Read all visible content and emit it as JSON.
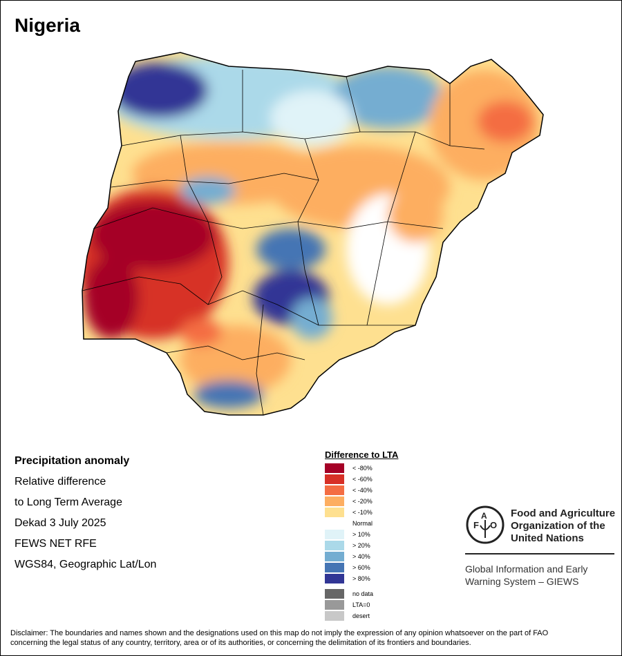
{
  "title": "Nigeria",
  "info": {
    "heading": "Precipitation anomaly",
    "lines": [
      "Relative difference",
      "to Long Term Average",
      "Dekad 3 July 2025",
      "FEWS NET RFE",
      "WGS84, Geographic Lat/Lon"
    ]
  },
  "legend": {
    "title": "Difference to LTA",
    "items": [
      {
        "label": "< -80%",
        "color": "#a50026"
      },
      {
        "label": "< -60%",
        "color": "#d73027"
      },
      {
        "label": "< -40%",
        "color": "#f46d43"
      },
      {
        "label": "< -20%",
        "color": "#fdae61"
      },
      {
        "label": "< -10%",
        "color": "#fee090"
      },
      {
        "label": "Normal",
        "color": "#ffffff"
      },
      {
        "label": "> 10%",
        "color": "#e0f3f8"
      },
      {
        "label": "> 20%",
        "color": "#abd9e9"
      },
      {
        "label": "> 40%",
        "color": "#74add1"
      },
      {
        "label": "> 60%",
        "color": "#4575b4"
      },
      {
        "label": "> 80%",
        "color": "#313695"
      }
    ],
    "extra": [
      {
        "label": "no data",
        "color": "#666666"
      },
      {
        "label": "LTA=0",
        "color": "#999999"
      },
      {
        "label": "desert",
        "color": "#c8c8c8"
      }
    ]
  },
  "logo": {
    "org_name": [
      "Food and Agriculture",
      "Organization of the",
      "United Nations"
    ],
    "emblem_text": "FAO FIAT PANIS",
    "system": [
      "Global Information and Early",
      "Warning System – GIEWS"
    ]
  },
  "disclaimer": [
    "Disclaimer: The boundaries and names shown and the designations used on this map do not imply the expression of any opinion whatsoever on the part of FAO",
    "concerning the legal status of any country, territory, area or of its authorities, or concerning the delimitation of its frontiers and boundaries."
  ]
}
